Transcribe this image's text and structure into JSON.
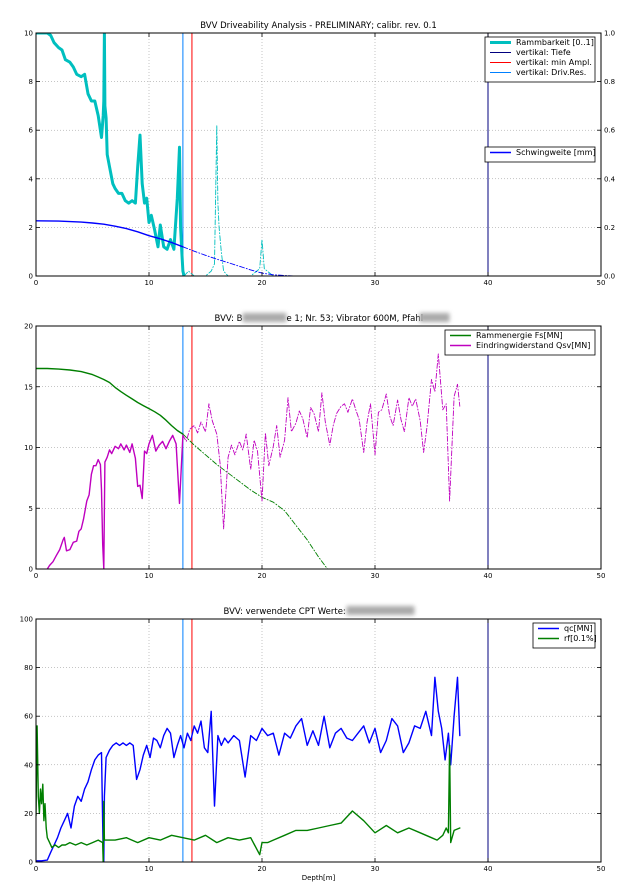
{
  "colors": {
    "cyan": "#00bfbf",
    "green": "#007f00",
    "blue": "#0000ff",
    "magenta": "#bf00bf",
    "navy": "#00007f",
    "red": "#ff0000",
    "ltblue": "#0080ff",
    "grid": "#8c8c8c"
  },
  "chart_data": [
    {
      "type": "line",
      "title": "BVV Driveability Analysis - PRELIMINARY; calibr. rev. 0.1",
      "xlim": [
        0,
        50
      ],
      "ylim": [
        0,
        10
      ],
      "y2lim": [
        0,
        1.0
      ],
      "xticks": [
        "0",
        "10",
        "20",
        "30",
        "40",
        "50"
      ],
      "yticks": [
        "0",
        "2",
        "4",
        "6",
        "8",
        "10"
      ],
      "y2ticks": [
        "0.0",
        "0.2",
        "0.4",
        "0.6",
        "0.8",
        "1.0"
      ],
      "grid": true,
      "legend": "top-right",
      "vlines": [
        {
          "name": "vertikal: Tiefe",
          "x": 40,
          "color": "navy"
        },
        {
          "name": "vertikal: min Ampl.",
          "x": 13.8,
          "color": "red"
        },
        {
          "name": "vertikal: Driv.Res.",
          "x": 13.0,
          "color": "ltblue"
        }
      ],
      "legend2": "right",
      "series": [
        {
          "name": "Rammbarkeit [0..1]",
          "axis": "y2",
          "color": "cyan",
          "style": "solid-thick",
          "x": [
            0,
            0.5,
            1.0,
            1.3,
            1.6,
            2.0,
            2.3,
            2.6,
            3.0,
            3.3,
            3.6,
            4.0,
            4.3,
            4.6,
            4.9,
            5.2,
            5.5,
            5.8,
            5.95,
            6.0,
            6.05,
            6.1,
            6.2,
            6.3,
            6.5,
            6.8,
            7.0,
            7.3,
            7.6,
            7.9,
            8.2,
            8.5,
            8.8,
            9.0,
            9.2,
            9.4,
            9.6,
            9.8,
            10.0,
            10.2,
            10.5,
            10.8,
            11.0,
            11.3,
            11.6,
            11.9,
            12.2,
            12.5,
            12.7,
            12.8,
            12.9,
            13.0,
            13.1
          ],
          "y": [
            1.0,
            1.0,
            1.0,
            0.99,
            0.96,
            0.94,
            0.93,
            0.89,
            0.88,
            0.86,
            0.83,
            0.82,
            0.83,
            0.75,
            0.72,
            0.72,
            0.66,
            0.57,
            0.66,
            0.72,
            1.0,
            0.7,
            0.65,
            0.5,
            0.45,
            0.38,
            0.36,
            0.34,
            0.34,
            0.31,
            0.3,
            0.31,
            0.3,
            0.45,
            0.58,
            0.38,
            0.3,
            0.32,
            0.22,
            0.25,
            0.19,
            0.12,
            0.21,
            0.12,
            0.11,
            0.15,
            0.11,
            0.32,
            0.53,
            0.2,
            0.1,
            0.02,
            0.0
          ]
        },
        {
          "name": "Rammbarkeit [0..1] (dashdot)",
          "axis": "y2",
          "color": "cyan",
          "style": "dashdot",
          "x": [
            13.1,
            13.5,
            14.0,
            15.0,
            15.5,
            15.8,
            16.0,
            16.1,
            16.2,
            16.4,
            16.6,
            17.0,
            18.0,
            19.0,
            19.8,
            20.0,
            20.2,
            21.0,
            25.0,
            30.0,
            37.5
          ],
          "y": [
            0.0,
            0.02,
            0.0,
            0.0,
            0.02,
            0.05,
            0.62,
            0.3,
            0.2,
            0.1,
            0.02,
            0.0,
            0.0,
            0.0,
            0.03,
            0.15,
            0.03,
            0.0,
            0.0,
            0.0,
            0.0
          ]
        },
        {
          "name": "Schwingweite [mm]",
          "axis": "y",
          "color": "blue",
          "style": "solid",
          "x": [
            0,
            2,
            4,
            5,
            6,
            7,
            8,
            9,
            10,
            11,
            12,
            13
          ],
          "y": [
            2.27,
            2.26,
            2.22,
            2.18,
            2.13,
            2.05,
            1.95,
            1.82,
            1.66,
            1.53,
            1.38,
            1.2
          ]
        },
        {
          "name": "Schwingweite [mm] (dashdot)",
          "axis": "y",
          "color": "blue",
          "style": "dashdot",
          "x": [
            13,
            14,
            15,
            16,
            17,
            18,
            19,
            20,
            21,
            22,
            23,
            25,
            30,
            35,
            37.5
          ],
          "y": [
            1.2,
            1.02,
            0.85,
            0.69,
            0.55,
            0.4,
            0.25,
            0.12,
            0.05,
            0.02,
            0.0,
            0.0,
            0.0,
            0.0,
            0.0
          ]
        }
      ]
    },
    {
      "type": "line",
      "title": "BVV: B███████ 1; Nr. 53; Vibrator 600M, Pfahl ████",
      "title_parts": [
        "BVV: B",
        "e 1; Nr. 53; Vibrator 600M, Pfahl "
      ],
      "xlim": [
        0,
        50
      ],
      "ylim": [
        0,
        20
      ],
      "xticks": [
        "0",
        "10",
        "20",
        "30",
        "40",
        "50"
      ],
      "yticks": [
        "0",
        "5",
        "10",
        "15",
        "20"
      ],
      "grid": true,
      "legend": "top-right",
      "vlines": [
        {
          "x": 40,
          "color": "navy"
        },
        {
          "x": 13.8,
          "color": "red"
        },
        {
          "x": 13.0,
          "color": "ltblue"
        }
      ],
      "series": [
        {
          "name": "Rammenergie Fs[MN]",
          "color": "green",
          "style": "solid",
          "x": [
            0,
            1,
            2,
            3,
            4,
            5,
            5.5,
            6,
            6.5,
            7,
            7.5,
            8,
            8.5,
            9,
            9.5,
            10,
            10.5,
            11,
            11.5,
            12,
            12.5,
            13
          ],
          "y": [
            16.5,
            16.5,
            16.45,
            16.38,
            16.25,
            16.0,
            15.8,
            15.6,
            15.35,
            14.95,
            14.6,
            14.3,
            14.0,
            13.7,
            13.45,
            13.2,
            12.95,
            12.65,
            12.25,
            11.8,
            11.4,
            11.1
          ]
        },
        {
          "name": "Rammenergie Fs[MN] (dashdot)",
          "color": "green",
          "style": "dashdot",
          "x": [
            13,
            14,
            15,
            16,
            17,
            18,
            19,
            20,
            21,
            22,
            23,
            24,
            25,
            25.8,
            30,
            37.5
          ],
          "y": [
            11.1,
            10.2,
            9.4,
            8.6,
            7.9,
            7.2,
            6.5,
            5.9,
            5.5,
            4.8,
            3.6,
            2.4,
            1.0,
            0.0,
            0.0,
            0.0
          ]
        },
        {
          "name": "Eindringwiderstand Qsv[MN]",
          "color": "magenta",
          "style": "solid",
          "x": [
            1.0,
            1.2,
            1.5,
            1.8,
            2.1,
            2.4,
            2.5,
            2.7,
            3.0,
            3.3,
            3.6,
            3.8,
            4.0,
            4.2,
            4.5,
            4.7,
            4.9,
            5.1,
            5.3,
            5.5,
            5.7,
            5.8,
            5.9,
            6.0,
            6.05,
            6.1,
            6.2,
            6.3,
            6.5,
            6.7,
            7.0,
            7.3,
            7.5,
            7.8,
            8.0,
            8.3,
            8.5,
            8.8,
            9.0,
            9.2,
            9.4,
            9.6,
            9.8,
            10.0,
            10.3,
            10.6,
            10.9,
            11.2,
            11.5,
            11.8,
            12.1,
            12.4,
            12.7,
            13.0
          ],
          "y": [
            0.0,
            0.3,
            0.6,
            1.1,
            1.6,
            2.4,
            2.6,
            1.5,
            1.6,
            2.2,
            2.3,
            3.1,
            3.3,
            4.1,
            5.6,
            6.1,
            7.8,
            8.5,
            8.5,
            9.0,
            8.6,
            6.5,
            2.0,
            0.0,
            5.0,
            8.8,
            9.0,
            9.2,
            9.8,
            9.5,
            10.1,
            9.9,
            10.3,
            9.8,
            10.2,
            9.6,
            10.3,
            9.1,
            6.8,
            6.9,
            5.8,
            9.7,
            9.5,
            10.3,
            11.0,
            9.7,
            10.2,
            10.5,
            9.9,
            10.5,
            11.0,
            10.3,
            5.4,
            11.0
          ]
        },
        {
          "name": "Eindringwiderstand Qsv[MN] (dashdot)",
          "color": "magenta",
          "style": "dashdot",
          "x": [
            13.0,
            13.3,
            13.6,
            14.0,
            14.3,
            14.6,
            15.0,
            15.3,
            15.6,
            16.0,
            16.3,
            16.6,
            17.0,
            17.3,
            17.6,
            18.0,
            18.3,
            18.6,
            19.0,
            19.3,
            19.6,
            20.0,
            20.3,
            20.6,
            21.0,
            21.3,
            21.6,
            22.0,
            22.3,
            22.6,
            23.0,
            23.3,
            23.6,
            24.0,
            24.3,
            24.6,
            25.0,
            25.3,
            25.6,
            26.0,
            26.3,
            26.6,
            27.0,
            27.3,
            27.6,
            28.0,
            28.3,
            28.6,
            29.0,
            29.3,
            29.6,
            30.0,
            30.3,
            30.6,
            31.0,
            31.3,
            31.6,
            32.0,
            32.3,
            32.6,
            33.0,
            33.3,
            33.6,
            34.0,
            34.3,
            34.6,
            35.0,
            35.3,
            35.6,
            36.0,
            36.3,
            36.6,
            37.0,
            37.3,
            37.5
          ],
          "y": [
            11.0,
            10.5,
            11.5,
            11.8,
            11.2,
            12.1,
            11.3,
            13.6,
            12.2,
            11.1,
            8.6,
            3.3,
            9.2,
            10.2,
            9.4,
            10.5,
            9.8,
            11.1,
            8.2,
            10.6,
            9.7,
            5.6,
            11.2,
            8.5,
            10.1,
            11.8,
            9.2,
            10.6,
            14.1,
            11.3,
            12.0,
            13.0,
            12.4,
            10.8,
            13.3,
            12.8,
            11.3,
            14.5,
            12.1,
            10.2,
            11.8,
            12.8,
            13.4,
            13.6,
            12.9,
            14.0,
            13.1,
            12.3,
            9.6,
            12.1,
            13.6,
            9.4,
            12.9,
            13.1,
            14.4,
            12.6,
            11.8,
            13.9,
            12.3,
            11.3,
            14.1,
            13.4,
            14.0,
            12.2,
            9.6,
            11.7,
            15.6,
            14.6,
            17.7,
            13.1,
            13.6,
            5.6,
            14.2,
            15.2,
            13.4
          ]
        }
      ]
    },
    {
      "type": "line",
      "title": "BVV: verwendete CPT Werte: ██████",
      "title_parts": [
        "BVV: verwendete CPT Werte: "
      ],
      "xlabel": "Depth[m]",
      "xlim": [
        0,
        50
      ],
      "ylim": [
        0,
        100
      ],
      "xticks": [
        "0",
        "10",
        "20",
        "30",
        "40",
        "50"
      ],
      "yticks": [
        "0",
        "20",
        "40",
        "60",
        "80",
        "100"
      ],
      "grid": true,
      "legend": "top-right",
      "vlines": [
        {
          "x": 40,
          "color": "navy"
        },
        {
          "x": 13.8,
          "color": "red"
        },
        {
          "x": 13.0,
          "color": "ltblue"
        }
      ],
      "series": [
        {
          "name": "qc[MN]",
          "color": "blue",
          "style": "solid",
          "x": [
            0,
            0.5,
            1.0,
            1.3,
            1.6,
            1.9,
            2.2,
            2.5,
            2.8,
            3.1,
            3.4,
            3.7,
            4.0,
            4.3,
            4.6,
            4.9,
            5.2,
            5.5,
            5.8,
            5.95,
            6.0,
            6.05,
            6.2,
            6.5,
            6.8,
            7.1,
            7.4,
            7.7,
            8.0,
            8.3,
            8.6,
            8.9,
            9.2,
            9.5,
            9.8,
            10.1,
            10.4,
            10.7,
            11.0,
            11.3,
            11.6,
            11.9,
            12.2,
            12.5,
            12.8,
            13.1,
            13.4,
            13.7,
            14.0,
            14.3,
            14.6,
            14.9,
            15.2,
            15.5,
            15.8,
            16.1,
            16.4,
            16.7,
            17.0,
            17.5,
            18.0,
            18.5,
            19.0,
            19.5,
            20.0,
            20.5,
            21.0,
            21.5,
            22.0,
            22.5,
            23.0,
            23.5,
            24.0,
            24.5,
            25.0,
            25.5,
            26.0,
            26.5,
            27.0,
            27.5,
            28.0,
            28.5,
            29.0,
            29.5,
            30.0,
            30.5,
            31.0,
            31.5,
            32.0,
            32.5,
            33.0,
            33.5,
            34.0,
            34.5,
            35.0,
            35.3,
            35.6,
            35.9,
            36.2,
            36.5,
            36.7,
            37.0,
            37.3,
            37.5
          ],
          "y": [
            0.5,
            0.5,
            0.8,
            4,
            7,
            10,
            14,
            17,
            20,
            14,
            23,
            27,
            25,
            30,
            33,
            38,
            42,
            44,
            45,
            3,
            0,
            27,
            43,
            46,
            48,
            49,
            48,
            49,
            48,
            49,
            48,
            34,
            38,
            44,
            48,
            43,
            51,
            50,
            47,
            52,
            55,
            53,
            43,
            48,
            52,
            47,
            53,
            50,
            56,
            53,
            58,
            47,
            45,
            62,
            23,
            52,
            48,
            51,
            49,
            52,
            50,
            35,
            52,
            50,
            55,
            52,
            53,
            44,
            53,
            51,
            56,
            59,
            48,
            54,
            48,
            60,
            47,
            53,
            55,
            51,
            50,
            53,
            56,
            49,
            55,
            45,
            50,
            59,
            56,
            45,
            49,
            56,
            55,
            62,
            52,
            76,
            62,
            55,
            42,
            53,
            40,
            60,
            76,
            52
          ]
        },
        {
          "name": "rf[0.1%]",
          "color": "green",
          "style": "solid",
          "x": [
            0,
            0.1,
            0.2,
            0.3,
            0.4,
            0.5,
            0.6,
            0.7,
            0.8,
            0.9,
            1.0,
            1.2,
            1.4,
            1.7,
            2.0,
            2.3,
            2.6,
            3.0,
            3.5,
            4.0,
            4.5,
            5.0,
            5.5,
            5.9,
            5.95,
            6.0,
            6.05,
            6.1,
            6.5,
            7,
            8,
            9,
            10,
            11,
            12,
            13,
            14,
            15,
            16,
            17,
            18,
            19,
            19.8,
            20,
            20.5,
            21,
            22,
            23,
            24,
            25,
            26,
            27,
            28,
            29,
            30,
            31,
            32,
            33,
            34,
            35,
            35.5,
            36,
            36.3,
            36.5,
            36.6,
            36.7,
            37,
            37.5
          ],
          "y": [
            19,
            56,
            27,
            20,
            30,
            24,
            32,
            17,
            24,
            14,
            10,
            8,
            6,
            7,
            6,
            7,
            7,
            8,
            7,
            8,
            7,
            8,
            9,
            8,
            0,
            25,
            9,
            9,
            9,
            9,
            10,
            8,
            10,
            9,
            11,
            10,
            9,
            11,
            8,
            10,
            9,
            10,
            3,
            8,
            8,
            9,
            11,
            13,
            13,
            14,
            15,
            16,
            21,
            17,
            12,
            15,
            12,
            14,
            12,
            10,
            9,
            11,
            14,
            12,
            48,
            8,
            13,
            14
          ]
        }
      ]
    }
  ]
}
